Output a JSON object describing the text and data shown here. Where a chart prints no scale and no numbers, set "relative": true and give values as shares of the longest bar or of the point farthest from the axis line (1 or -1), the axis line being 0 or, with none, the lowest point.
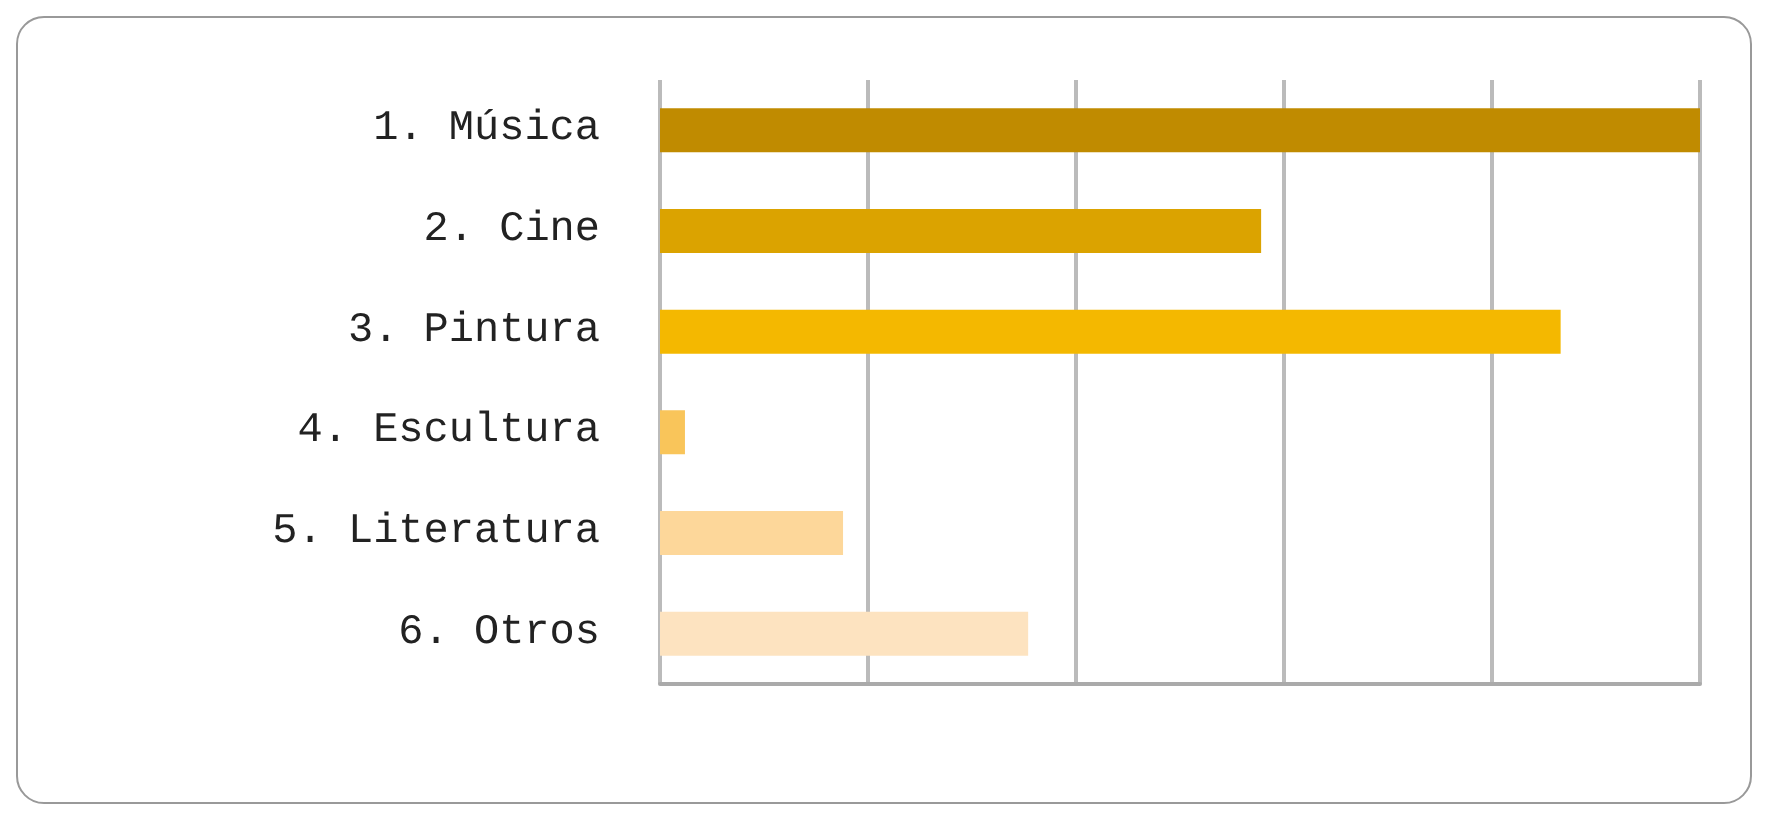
{
  "chart_data": {
    "type": "bar",
    "orientation": "horizontal",
    "relative": true,
    "grid": "x",
    "categories": [
      "1. Música",
      "2. Cine",
      "3. Pintura",
      "4. Escultura",
      "5. Literatura",
      "6. Otros"
    ],
    "values": [
      1,
      0.578,
      0.866,
      0.024,
      0.176,
      0.354
    ],
    "colors": [
      "#c08b00",
      "#dba300",
      "#f4b800",
      "#f9c55a",
      "#fdd79a",
      "#fde3c0"
    ]
  }
}
